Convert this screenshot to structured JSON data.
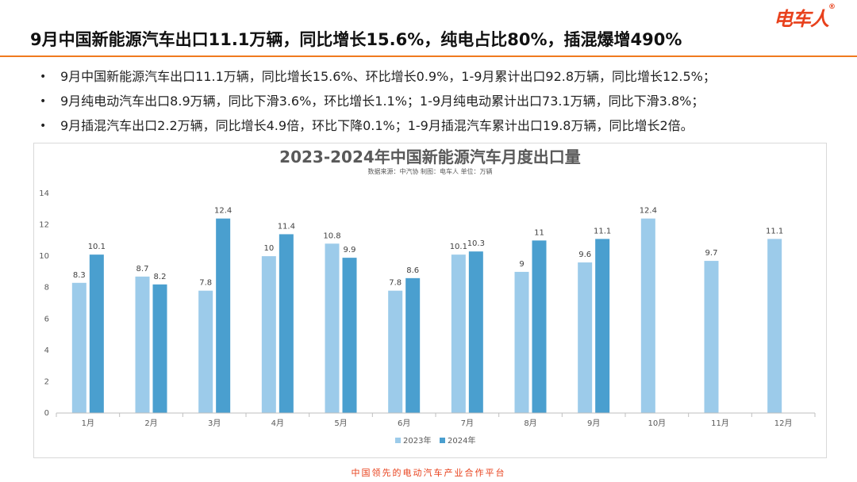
{
  "header": {
    "title": "9月中国新能源汽车出口11.1万辆，同比增长15.6%，纯电占比80%，插混爆增490%",
    "logo_text": "电车人",
    "logo_mark": "®",
    "accent_color": "#e8411c",
    "rule_color": "#f07a1e"
  },
  "bullets": [
    "9月中国新能源汽车出口11.1万辆，同比增长15.6%、环比增长0.9%，1-9月累计出口92.8万辆，同比增长12.5%；",
    "9月纯电动汽车出口8.9万辆，同比下滑3.6%，环比增长1.1%；1-9月纯电动累计出口73.1万辆，同比下滑3.8%；",
    "9月插混汽车出口2.2万辆，同比增长4.9倍，环比下降0.1%；1-9月插混汽车累计出口19.8万辆，同比增长2倍。"
  ],
  "bullet_symbol": "•",
  "chart_data": {
    "type": "bar",
    "title": "2023-2024年中国新能源汽车月度出口量",
    "subtitle": "数据来源：中汽协    制图：电车人    单位：万辆",
    "categories": [
      "1月",
      "2月",
      "3月",
      "4月",
      "5月",
      "6月",
      "7月",
      "8月",
      "9月",
      "10月",
      "11月",
      "12月"
    ],
    "series": [
      {
        "name": "2023年",
        "color": "#9ccbea",
        "values": [
          8.3,
          8.7,
          7.8,
          10,
          10.8,
          7.8,
          10.1,
          9,
          9.6,
          12.4,
          9.7,
          11.1
        ]
      },
      {
        "name": "2024年",
        "color": "#4a9fcf",
        "values": [
          10.1,
          8.2,
          12.4,
          11.4,
          9.9,
          8.6,
          10.3,
          11,
          11.1,
          null,
          null,
          null
        ]
      }
    ],
    "ylim": [
      0,
      14
    ],
    "yticks": [
      0,
      2,
      4,
      6,
      8,
      10,
      12,
      14
    ],
    "grid": false,
    "legend_position": "bottom-center",
    "data_labels": true
  },
  "footer": {
    "text": "中国领先的电动汽车产业合作平台"
  }
}
